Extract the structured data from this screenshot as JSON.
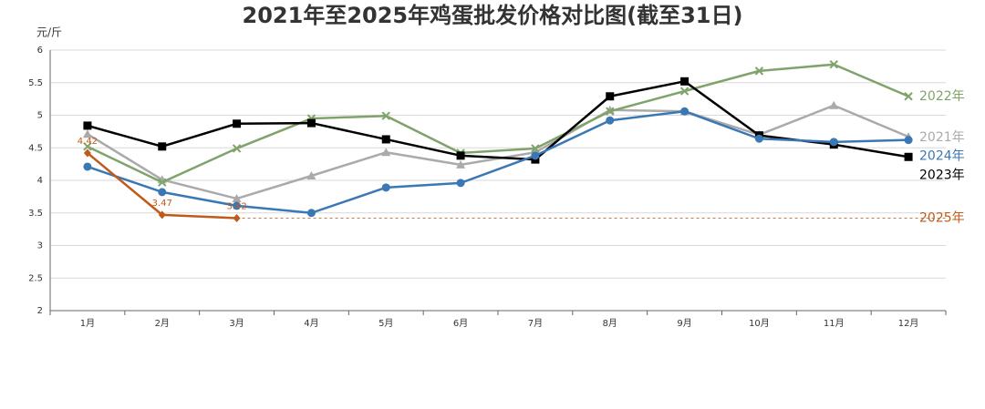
{
  "chart_data": {
    "type": "line",
    "title": "2021年至2025年鸡蛋批发价格对比图(截至31日)",
    "ylabel": "元/斤",
    "categories": [
      "1月",
      "2月",
      "3月",
      "4月",
      "5月",
      "6月",
      "7月",
      "8月",
      "9月",
      "10月",
      "11月",
      "12月"
    ],
    "ylim": [
      2,
      6
    ],
    "yticks": [
      2,
      2.5,
      3,
      3.5,
      4,
      4.5,
      5,
      5.5,
      6
    ],
    "grid": true,
    "series": [
      {
        "name": "2021年",
        "color": "#aaaaaa",
        "marker": "triangle",
        "values": [
          4.71,
          4.01,
          3.72,
          4.07,
          4.43,
          4.24,
          4.43,
          5.08,
          5.06,
          4.7,
          5.15,
          4.67
        ]
      },
      {
        "name": "2022年",
        "color": "#7fa36a",
        "marker": "x",
        "values": [
          4.52,
          3.97,
          4.49,
          4.95,
          4.99,
          4.42,
          4.49,
          5.06,
          5.37,
          5.68,
          5.78,
          5.29
        ]
      },
      {
        "name": "2023年",
        "color": "#000000",
        "marker": "square",
        "values": [
          4.84,
          4.52,
          4.87,
          4.88,
          4.63,
          4.38,
          4.32,
          5.29,
          5.52,
          4.69,
          4.55,
          4.36
        ]
      },
      {
        "name": "2024年",
        "color": "#3a78b5",
        "marker": "circle",
        "values": [
          4.21,
          3.82,
          3.61,
          3.5,
          3.89,
          3.96,
          4.38,
          4.92,
          5.06,
          4.64,
          4.59,
          4.62
        ]
      },
      {
        "name": "2025年",
        "color": "#c05a1a",
        "marker": "diamond",
        "data_labels": true,
        "reference_line": true,
        "values": [
          4.42,
          3.47,
          3.42,
          null,
          null,
          null,
          null,
          null,
          null,
          null,
          null,
          null
        ]
      }
    ]
  }
}
